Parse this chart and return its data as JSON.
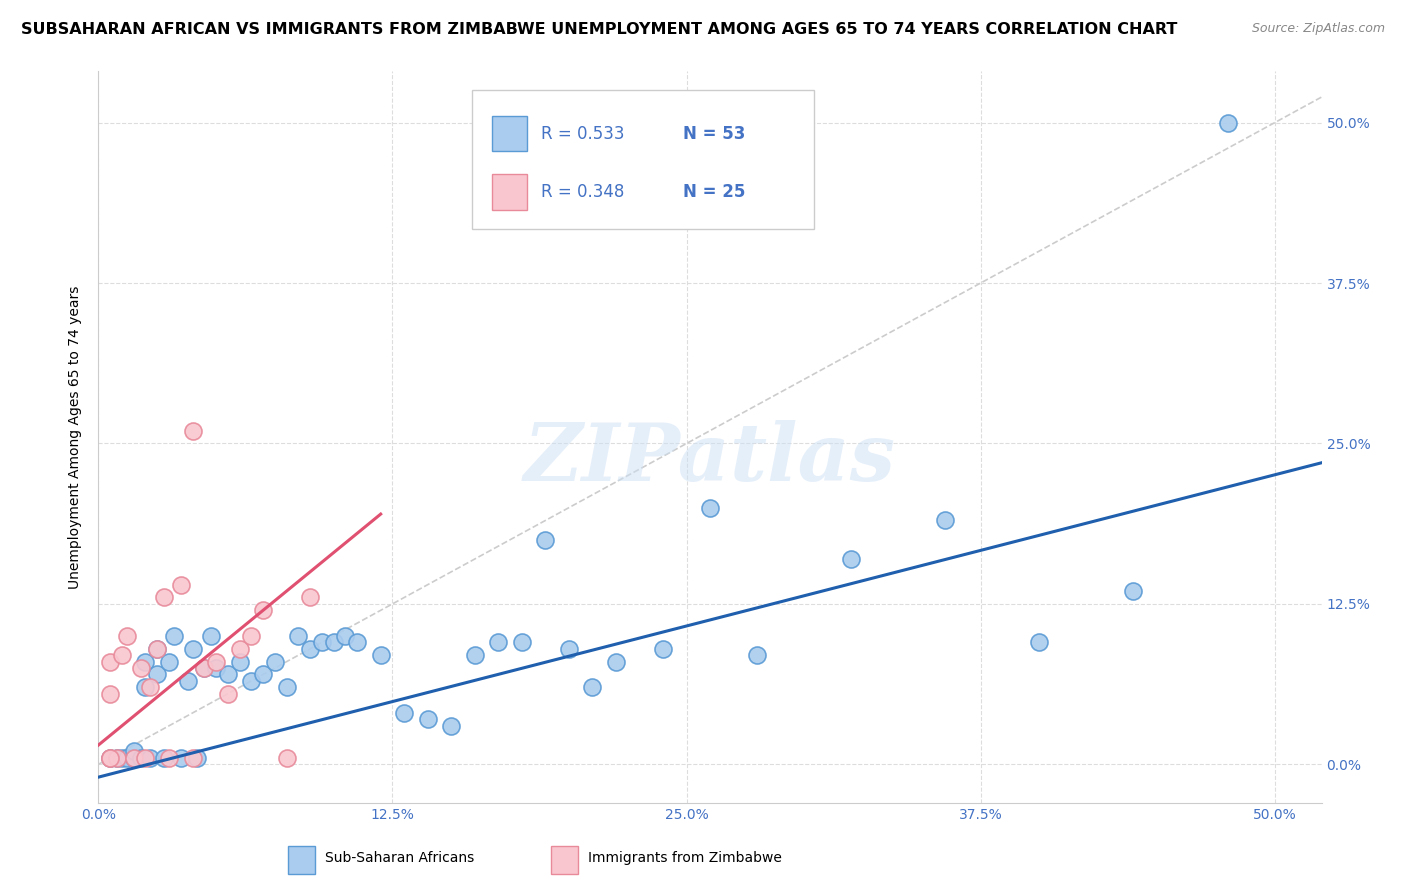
{
  "title": "SUBSAHARAN AFRICAN VS IMMIGRANTS FROM ZIMBABWE UNEMPLOYMENT AMONG AGES 65 TO 74 YEARS CORRELATION CHART",
  "source": "Source: ZipAtlas.com",
  "xlabel_ticks": [
    "0.0%",
    "12.5%",
    "25.0%",
    "37.5%",
    "50.0%"
  ],
  "ylabel_ticks": [
    "0.0%",
    "12.5%",
    "25.0%",
    "37.5%",
    "50.0%"
  ],
  "ylabel": "Unemployment Among Ages 65 to 74 years",
  "xlim": [
    0.0,
    0.52
  ],
  "ylim": [
    -0.03,
    0.54
  ],
  "watermark_text": "ZIPatlas",
  "legend_blue_r": "R = 0.533",
  "legend_blue_n": "N = 53",
  "legend_pink_r": "R = 0.348",
  "legend_pink_n": "N = 25",
  "legend_text_color": "#4472c4",
  "legend_r_color": "#333333",
  "blue_scatter_x": [
    0.005,
    0.008,
    0.01,
    0.012,
    0.015,
    0.015,
    0.018,
    0.02,
    0.02,
    0.022,
    0.025,
    0.025,
    0.028,
    0.03,
    0.032,
    0.035,
    0.038,
    0.04,
    0.042,
    0.045,
    0.048,
    0.05,
    0.055,
    0.06,
    0.065,
    0.07,
    0.075,
    0.08,
    0.085,
    0.09,
    0.095,
    0.1,
    0.105,
    0.11,
    0.12,
    0.13,
    0.14,
    0.15,
    0.16,
    0.17,
    0.18,
    0.19,
    0.2,
    0.21,
    0.22,
    0.24,
    0.26,
    0.28,
    0.32,
    0.36,
    0.4,
    0.44,
    0.48
  ],
  "blue_scatter_y": [
    0.005,
    0.005,
    0.005,
    0.005,
    0.005,
    0.01,
    0.005,
    0.06,
    0.08,
    0.005,
    0.07,
    0.09,
    0.005,
    0.08,
    0.1,
    0.005,
    0.065,
    0.09,
    0.005,
    0.075,
    0.1,
    0.075,
    0.07,
    0.08,
    0.065,
    0.07,
    0.08,
    0.06,
    0.1,
    0.09,
    0.095,
    0.095,
    0.1,
    0.095,
    0.085,
    0.04,
    0.035,
    0.03,
    0.085,
    0.095,
    0.095,
    0.175,
    0.09,
    0.06,
    0.08,
    0.09,
    0.2,
    0.085,
    0.16,
    0.19,
    0.095,
    0.135,
    0.5
  ],
  "pink_scatter_x": [
    0.005,
    0.005,
    0.005,
    0.008,
    0.01,
    0.012,
    0.015,
    0.018,
    0.02,
    0.022,
    0.025,
    0.028,
    0.03,
    0.035,
    0.04,
    0.045,
    0.05,
    0.055,
    0.06,
    0.065,
    0.07,
    0.08,
    0.09,
    0.04,
    0.005
  ],
  "pink_scatter_y": [
    0.005,
    0.055,
    0.08,
    0.005,
    0.085,
    0.1,
    0.005,
    0.075,
    0.005,
    0.06,
    0.09,
    0.13,
    0.005,
    0.14,
    0.005,
    0.075,
    0.08,
    0.055,
    0.09,
    0.1,
    0.12,
    0.005,
    0.13,
    0.26,
    0.005
  ],
  "blue_line_x": [
    0.0,
    0.52
  ],
  "blue_line_y": [
    -0.01,
    0.235
  ],
  "pink_line_x": [
    0.0,
    0.12
  ],
  "pink_line_y": [
    0.015,
    0.195
  ],
  "diag_line_color": "#cccccc",
  "grid_color": "#dddddd",
  "blue_face": "#aaccee",
  "blue_edge": "#5b9bd5",
  "pink_face": "#f9c6cf",
  "pink_edge": "#e88a9a",
  "blue_line_color": "#1f5fad",
  "pink_line_color": "#e05070",
  "tick_color": "#4472c4",
  "title_fontsize": 11.5,
  "source_fontsize": 9,
  "axis_label_fontsize": 10,
  "tick_fontsize": 10,
  "legend_fontsize": 12,
  "bottom_legend_label1": "Sub-Saharan Africans",
  "bottom_legend_label2": "Immigrants from Zimbabwe"
}
